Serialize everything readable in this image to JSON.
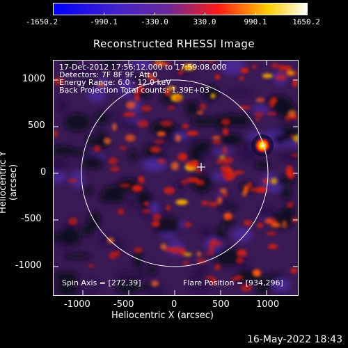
{
  "colorbar": {
    "labels": [
      "-1650.2",
      "-990.1",
      "-330.0",
      "330.0",
      "990.1",
      "1650.2"
    ],
    "min": -1650.2,
    "max": 1650.2
  },
  "title": "Reconstructed RHESSI Image",
  "info": {
    "line1": "17-Dec-2012 17:56:12.000 to 17:59:08.000",
    "line2": "Detectors: 7F 8F 9F, Att 0",
    "line3": "Energy Range: 6.0 - 12.0 keV",
    "line4": "Back Projection    Total counts: 1.39E+03",
    "spin_axis": "Spin Axis = [272,39]",
    "flare_position": "Flare Position = [934,296]"
  },
  "axes": {
    "xlabel": "Heliocentric X (arcsec)",
    "ylabel": "Heliocentric Y (arcsec)",
    "xticks": [
      "-1000",
      "-500",
      "0",
      "500",
      "1000"
    ],
    "yticks": [
      "1000",
      "500",
      "0",
      "-500",
      "-1000"
    ]
  },
  "datestamp": "16-May-2022 18:43"
}
